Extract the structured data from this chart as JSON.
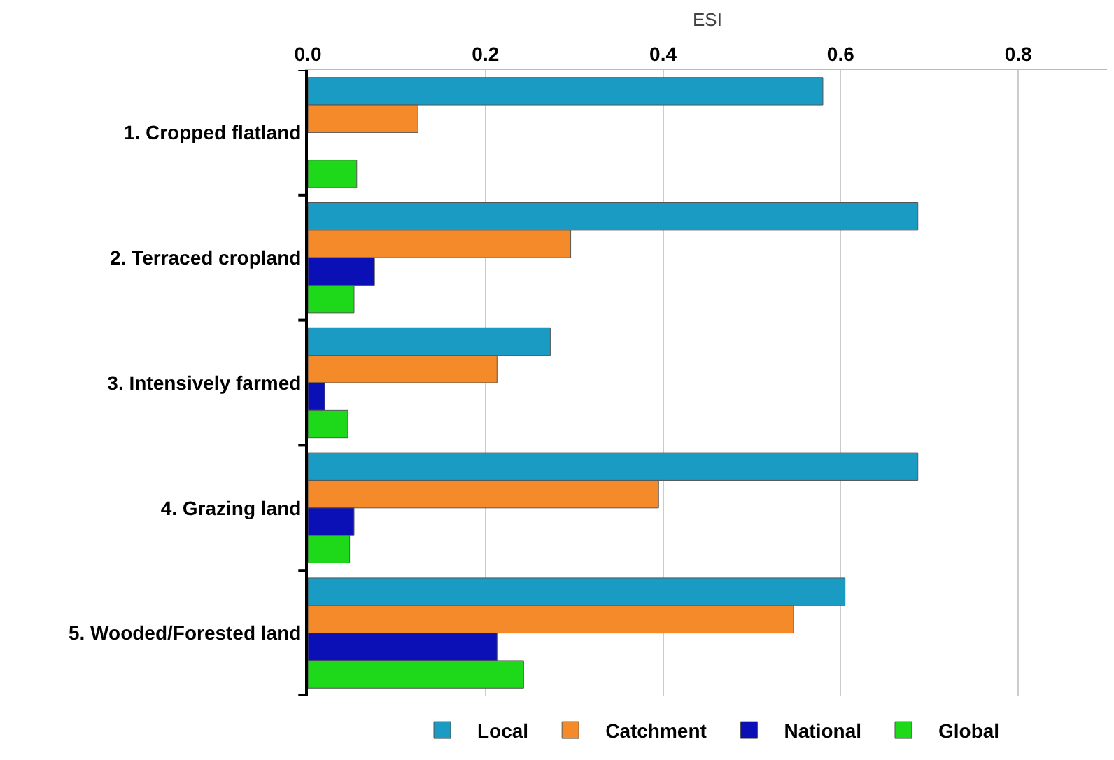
{
  "chart_data": {
    "type": "bar",
    "orientation": "horizontal",
    "xlabel": "ESI",
    "categories": [
      "1. Cropped flatland",
      "2. Terraced cropland",
      "3. Intensively farmed",
      "4. Grazing land",
      "5. Wooded/Forested land"
    ],
    "series": [
      {
        "name": "Local",
        "color": "#1a9bc4",
        "values": [
          0.58,
          0.687,
          0.273,
          0.687,
          0.605
        ]
      },
      {
        "name": "Catchment",
        "color": "#f58a2a",
        "values": [
          0.124,
          0.296,
          0.213,
          0.395,
          0.547
        ]
      },
      {
        "name": "National",
        "color": "#0a10b5",
        "values": [
          null,
          0.075,
          0.019,
          0.052,
          0.213
        ]
      },
      {
        "name": "Global",
        "color": "#1ed81a",
        "values": [
          0.055,
          0.052,
          0.045,
          0.047,
          0.243
        ]
      }
    ],
    "xlim": [
      0,
      0.9
    ],
    "xticks": [
      {
        "value": 0,
        "label": "0.0"
      },
      0.2,
      0.4,
      0.6,
      0.8
    ],
    "grid": "x",
    "legend": "bottom"
  }
}
